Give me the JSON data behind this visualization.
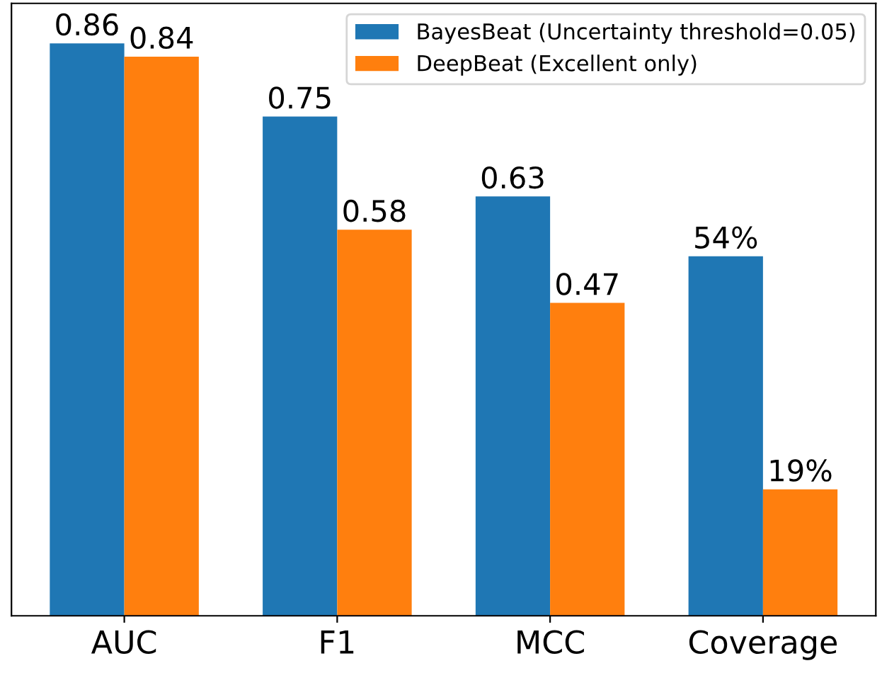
{
  "chart_data": {
    "type": "bar",
    "categories": [
      "AUC",
      "F1",
      "MCC",
      "Coverage"
    ],
    "series": [
      {
        "name": "BayesBeat (Uncertainty threshold=0.05)",
        "color": "#1f77b4",
        "values": [
          0.86,
          0.75,
          0.63,
          0.54
        ],
        "value_labels": [
          "0.86",
          "0.75",
          "0.63",
          "54%"
        ]
      },
      {
        "name": "DeepBeat (Excellent only)",
        "color": "#ff7f0e",
        "values": [
          0.84,
          0.58,
          0.47,
          0.19
        ],
        "value_labels": [
          "0.84",
          "0.58",
          "0.47",
          "19%"
        ]
      }
    ],
    "ylim": [
      0,
      0.92
    ],
    "tick_labels": "x",
    "legend": "top right",
    "grid": false
  }
}
